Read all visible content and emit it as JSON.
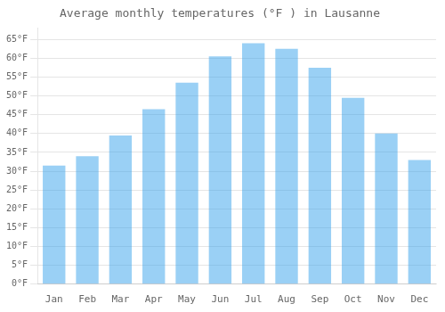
{
  "chart_data": {
    "type": "bar",
    "title": "Average monthly temperatures (°F ) in Lausanne",
    "categories": [
      "Jan",
      "Feb",
      "Mar",
      "Apr",
      "May",
      "Jun",
      "Jul",
      "Aug",
      "Sep",
      "Oct",
      "Nov",
      "Dec"
    ],
    "values": [
      31.5,
      34.0,
      39.5,
      46.5,
      53.5,
      60.5,
      64.0,
      62.5,
      57.5,
      49.5,
      40.0,
      33.0
    ],
    "ylim": [
      0,
      68
    ],
    "yticks": [
      {
        "value": 0,
        "label": "0°F"
      },
      {
        "value": 5,
        "label": "5°F"
      },
      {
        "value": 10,
        "label": "10°F"
      },
      {
        "value": 15,
        "label": "15°F"
      },
      {
        "value": 20,
        "label": "20°F"
      },
      {
        "value": 25,
        "label": "25°F"
      },
      {
        "value": 30,
        "label": "30°F"
      },
      {
        "value": 35,
        "label": "35°F"
      },
      {
        "value": 40,
        "label": "40°F"
      },
      {
        "value": 45,
        "label": "45°F"
      },
      {
        "value": 50,
        "label": "50°F"
      },
      {
        "value": 55,
        "label": "55°F"
      },
      {
        "value": 60,
        "label": "60°F"
      },
      {
        "value": 65,
        "label": "65°F"
      }
    ],
    "grid": true
  }
}
